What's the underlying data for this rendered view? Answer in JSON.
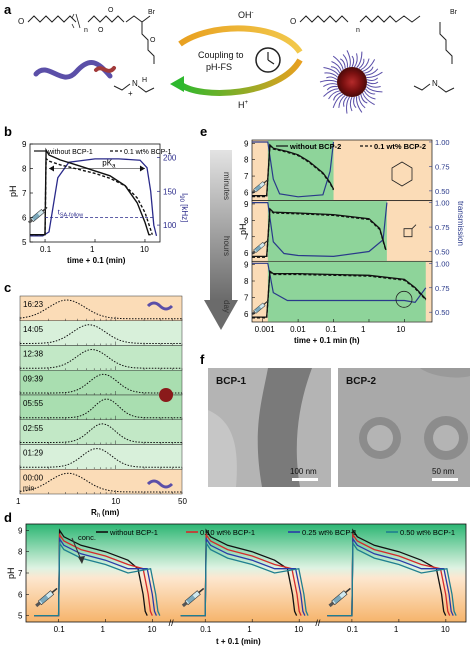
{
  "panels": {
    "a": "a",
    "b": "b",
    "c": "c",
    "d": "d",
    "e": "e",
    "f": "f"
  },
  "scheme": {
    "oh": "OH",
    "oh_sup": "-",
    "h": "H",
    "h_sup": "+",
    "coupling_line1": "Coupling to",
    "coupling_line2": "pH-FS",
    "br_left": "Br",
    "br_right": "Br",
    "n_left": "n",
    "n_right": "n",
    "plus": "+",
    "h_on_n": "H",
    "colors": {
      "arrow_top_start": "#e8a020",
      "arrow_top_end": "#f2c94c",
      "arrow_bottom_start": "#2eb82e",
      "arrow_bottom_end": "#e8a020",
      "polymer": "#5b4fa8",
      "micelle": "#8a1a1a"
    }
  },
  "panel_b": {
    "legend": [
      "without BCP-1",
      "0.1 wt% BCP-1"
    ],
    "ylabel": "pH",
    "y2label": "I",
    "y2label_sub": "90",
    "y2label_unit": " [kHz]",
    "xlabel": "time + 0.1 (min)",
    "yticks": [
      "5",
      "6",
      "7",
      "8",
      "9"
    ],
    "y2ticks": [
      "100",
      "150",
      "200"
    ],
    "xticks": [
      "0.1",
      "1",
      "10"
    ],
    "pka_label": "pK",
    "pka_sub": "a",
    "tsa_label": "t",
    "tsa_sub": "SA-follow",
    "colors": {
      "curve": "#111111",
      "intensity": "#2a2a8a",
      "tsa": "#2a2a8a"
    }
  },
  "chart_data": [
    {
      "type": "line",
      "panel": "b",
      "xlabel": "time + 0.1 (min)",
      "ylabel": "pH",
      "y2label": "I90 [kHz]",
      "xscale": "log",
      "xlim": [
        0.05,
        20
      ],
      "ylim": [
        5,
        9
      ],
      "y2lim": [
        75,
        220
      ],
      "series": [
        {
          "name": "without BCP-1",
          "axis": "left",
          "x": [
            0.05,
            0.08,
            0.1,
            0.105,
            0.12,
            0.2,
            0.5,
            1,
            2,
            4,
            7,
            10,
            12,
            13
          ],
          "y": [
            5.3,
            5.3,
            5.3,
            8.75,
            8.55,
            8.35,
            8.1,
            7.9,
            7.7,
            7.3,
            6.6,
            5.8,
            5.3,
            5.3
          ]
        },
        {
          "name": "0.1 wt% BCP-1",
          "axis": "left",
          "x": [
            0.05,
            0.08,
            0.1,
            0.105,
            0.12,
            0.2,
            0.5,
            1,
            2,
            4,
            7,
            10,
            13,
            14
          ],
          "y": [
            5.3,
            5.3,
            5.3,
            8.4,
            8.3,
            8.15,
            7.95,
            7.8,
            7.6,
            7.3,
            6.8,
            6.2,
            5.5,
            5.3
          ]
        },
        {
          "axis": "right",
          "x": [
            0.05,
            0.09,
            0.12,
            0.18,
            0.3,
            1,
            3,
            8,
            11,
            13,
            15,
            17
          ],
          "y": [
            84,
            84,
            90,
            170,
            193,
            198,
            198,
            196,
            185,
            150,
            100,
            84
          ]
        }
      ]
    },
    {
      "type": "line",
      "panel": "c",
      "xlabel": "R_h (nm)",
      "xscale": "log",
      "xlim": [
        1,
        50
      ],
      "rows": [
        {
          "label": "16:23",
          "peak": 3.1,
          "width": 0.42,
          "style": "dotted",
          "bg": "#fbdcb7"
        },
        {
          "label": "14:05",
          "peak": 5.3,
          "width": 0.38,
          "style": "dotted",
          "bg": "#d8f0da"
        },
        {
          "label": "12:38",
          "peak": 5.7,
          "width": 0.36,
          "style": "dotted",
          "bg": "#c2e8c6"
        },
        {
          "label": "09:39",
          "peak": 7.5,
          "width": 0.32,
          "style": "dotted",
          "bg": "#a9deb0"
        },
        {
          "label": "05:55",
          "peak": 8.1,
          "width": 0.28,
          "style": "dotted",
          "bg": "#a9deb0"
        },
        {
          "label": "02:55",
          "peak": 7.3,
          "width": 0.3,
          "style": "dotted",
          "bg": "#c2e8c6"
        },
        {
          "label": "01:29",
          "peak": 6.4,
          "width": 0.34,
          "style": "dotted",
          "bg": "#d8f0da"
        },
        {
          "label": "00:00",
          "sublabel": "min",
          "peak": 3.2,
          "width": 0.42,
          "style": "dotted",
          "bg": "#fbdcb7"
        }
      ],
      "xticks": [
        "1",
        "10",
        "50"
      ]
    },
    {
      "type": "line",
      "panel": "e",
      "xlabel": "time + 0.1 min (h)",
      "ylabel": "pH",
      "y2label": "transmission",
      "xscale": "log",
      "xlim": [
        0.0005,
        60
      ],
      "ylim": [
        5.5,
        9.2
      ],
      "y2lim": [
        0.4,
        1.02
      ],
      "legend": [
        "without BCP-2",
        "0.1 wt% BCP-2"
      ],
      "rows": [
        {
          "name": "minutes",
          "ph_x": [
            0.0005,
            0.0013,
            0.0016,
            0.002,
            0.005,
            0.01,
            0.02,
            0.05,
            0.08,
            0.1
          ],
          "ph_y": [
            5.8,
            5.8,
            8.9,
            8.7,
            8.5,
            8.3,
            7.9,
            7.2,
            6.6,
            6.2
          ],
          "tr_x": [
            0.0005,
            0.0014,
            0.002,
            0.003,
            0.01,
            0.05,
            0.08,
            0.1
          ],
          "tr_y": [
            1.0,
            1.0,
            0.62,
            0.47,
            0.44,
            0.46,
            0.7,
            1.0
          ]
        },
        {
          "name": "hours",
          "ph_x": [
            0.0005,
            0.0013,
            0.0016,
            0.002,
            0.01,
            0.1,
            1,
            2,
            3
          ],
          "ph_y": [
            5.8,
            5.8,
            8.7,
            8.5,
            8.45,
            8.35,
            8.1,
            7.5,
            6.2
          ],
          "tr_x": [
            0.0005,
            0.0014,
            0.002,
            0.004,
            0.01,
            0.1,
            1,
            2.5,
            3.2
          ],
          "tr_y": [
            1.0,
            1.0,
            0.6,
            0.48,
            0.46,
            0.45,
            0.5,
            0.62,
            1.0
          ]
        },
        {
          "name": "day",
          "ph_x": [
            0.0005,
            0.0013,
            0.0016,
            0.002,
            0.01,
            0.1,
            1,
            10,
            20,
            40
          ],
          "ph_y": [
            5.8,
            5.8,
            8.6,
            8.45,
            8.45,
            8.4,
            8.35,
            8.1,
            7.6,
            6.9
          ],
          "tr_x": [
            0.0005,
            0.0014,
            0.002,
            0.005,
            0.1,
            1,
            10,
            20,
            40
          ],
          "tr_y": [
            1.0,
            1.0,
            0.7,
            0.62,
            0.62,
            0.62,
            0.62,
            0.6,
            0.75
          ]
        }
      ],
      "yticks": [
        "6",
        "7",
        "8",
        "9"
      ],
      "y2ticks": [
        "0.50",
        "0.75",
        "1.00"
      ],
      "xticks": [
        "0.001",
        "0.01",
        "0.1",
        "1",
        "10"
      ],
      "timescale_labels": [
        "minutes",
        "hours",
        "day"
      ]
    },
    {
      "type": "line",
      "panel": "d",
      "xlabel": "t + 0.1 (min)",
      "ylabel": "pH",
      "xscale": "log",
      "ylim": [
        4.7,
        9.3
      ],
      "legend": [
        "without BCP-1",
        "0.10 wt% BCP-1",
        "0.25 wt% BCP-1",
        "0.50 wt% BCP-1"
      ],
      "series_colors": [
        "#111111",
        "#d42a2a",
        "#2a3aa8",
        "#1f7f8f"
      ],
      "annotation": "conc.",
      "groups": [
        {
          "ends": [
            7,
            9,
            11,
            13
          ]
        },
        {
          "ends": [
            8,
            10,
            12,
            14
          ]
        },
        {
          "ends": [
            9,
            11,
            13,
            15
          ]
        }
      ],
      "yticks": [
        "5",
        "6",
        "7",
        "8",
        "9"
      ],
      "xticks": [
        "0.1",
        "1",
        "10"
      ]
    }
  ],
  "panel_f": {
    "left_label": "BCP-1",
    "right_label": "BCP-2",
    "left_scale": "100 nm",
    "right_scale": "50 nm"
  },
  "panel_e_legend": {
    "solid": "without BCP-2",
    "dashed": "0.1 wt% BCP-2"
  },
  "panel_d_legend_label": "conc."
}
